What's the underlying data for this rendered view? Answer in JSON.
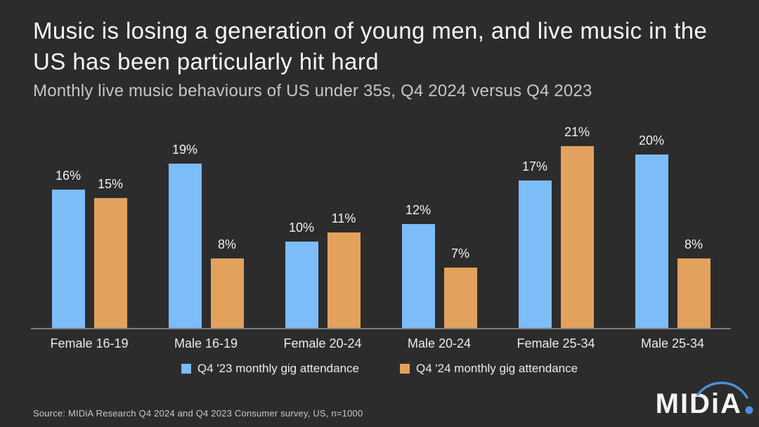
{
  "slide": {
    "title": "Music is losing a generation of young men, and live music in the US has been particularly hit hard",
    "subtitle": "Monthly live music behaviours of US under 35s, Q4 2024 versus Q4 2023",
    "background_color": "#2d2c2c"
  },
  "chart_data": {
    "type": "bar",
    "categories": [
      "Female 16-19",
      "Male 16-19",
      "Female 20-24",
      "Male 20-24",
      "Female 25-34",
      "Male 25-34"
    ],
    "series": [
      {
        "name": "Q4 '23 monthly gig attendance",
        "color": "#7cbdf8",
        "values": [
          16,
          19,
          10,
          12,
          17,
          20
        ]
      },
      {
        "name": "Q4 '24 monthly gig attendance",
        "color": "#e2a25e",
        "values": [
          15,
          8,
          11,
          7,
          21,
          8
        ]
      }
    ],
    "value_suffix": "%",
    "ylim": [
      0,
      24
    ],
    "grid": false,
    "legend_position": "bottom",
    "axis_line_color": "#7d7d7d"
  },
  "footer": {
    "source": "Source: MIDiA Research Q4 2024 and Q4 2023 Consumer survey, US, n=1000",
    "logo_text": "MIDiA",
    "logo_accent_color": "#4a90d9"
  }
}
